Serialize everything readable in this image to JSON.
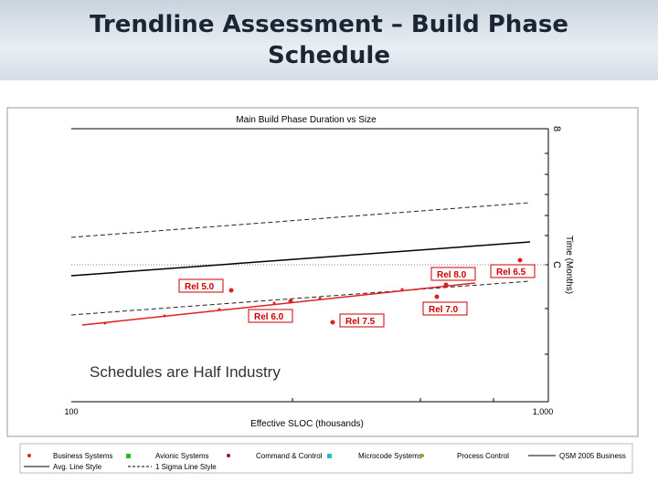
{
  "header": {
    "title": "Trendline Assessment – Build Phase Schedule"
  },
  "chart": {
    "title": "Main Build Phase Duration vs Size",
    "x_axis_label": "Effective SLOC (thousands)",
    "y_axis_label": "Time (Months)",
    "x_tick_labels": [
      "100",
      "1,000"
    ],
    "y_tick_labels": [
      "8",
      "C"
    ],
    "release_labels": [
      "Rel 5.0",
      "Rel 6.0",
      "Rel 7.5",
      "Rel 8.0",
      "Rel 6.5",
      "Rel 7.0"
    ],
    "annotation": "Schedules are Half Industry"
  },
  "legend": [
    "Business Systems",
    "Avionic Systems",
    "Command & Control",
    "Microcode Systems",
    "Process Control",
    "QSM 2005 Business",
    "Avg. Line Style",
    "1 Sigma Line Style"
  ]
}
